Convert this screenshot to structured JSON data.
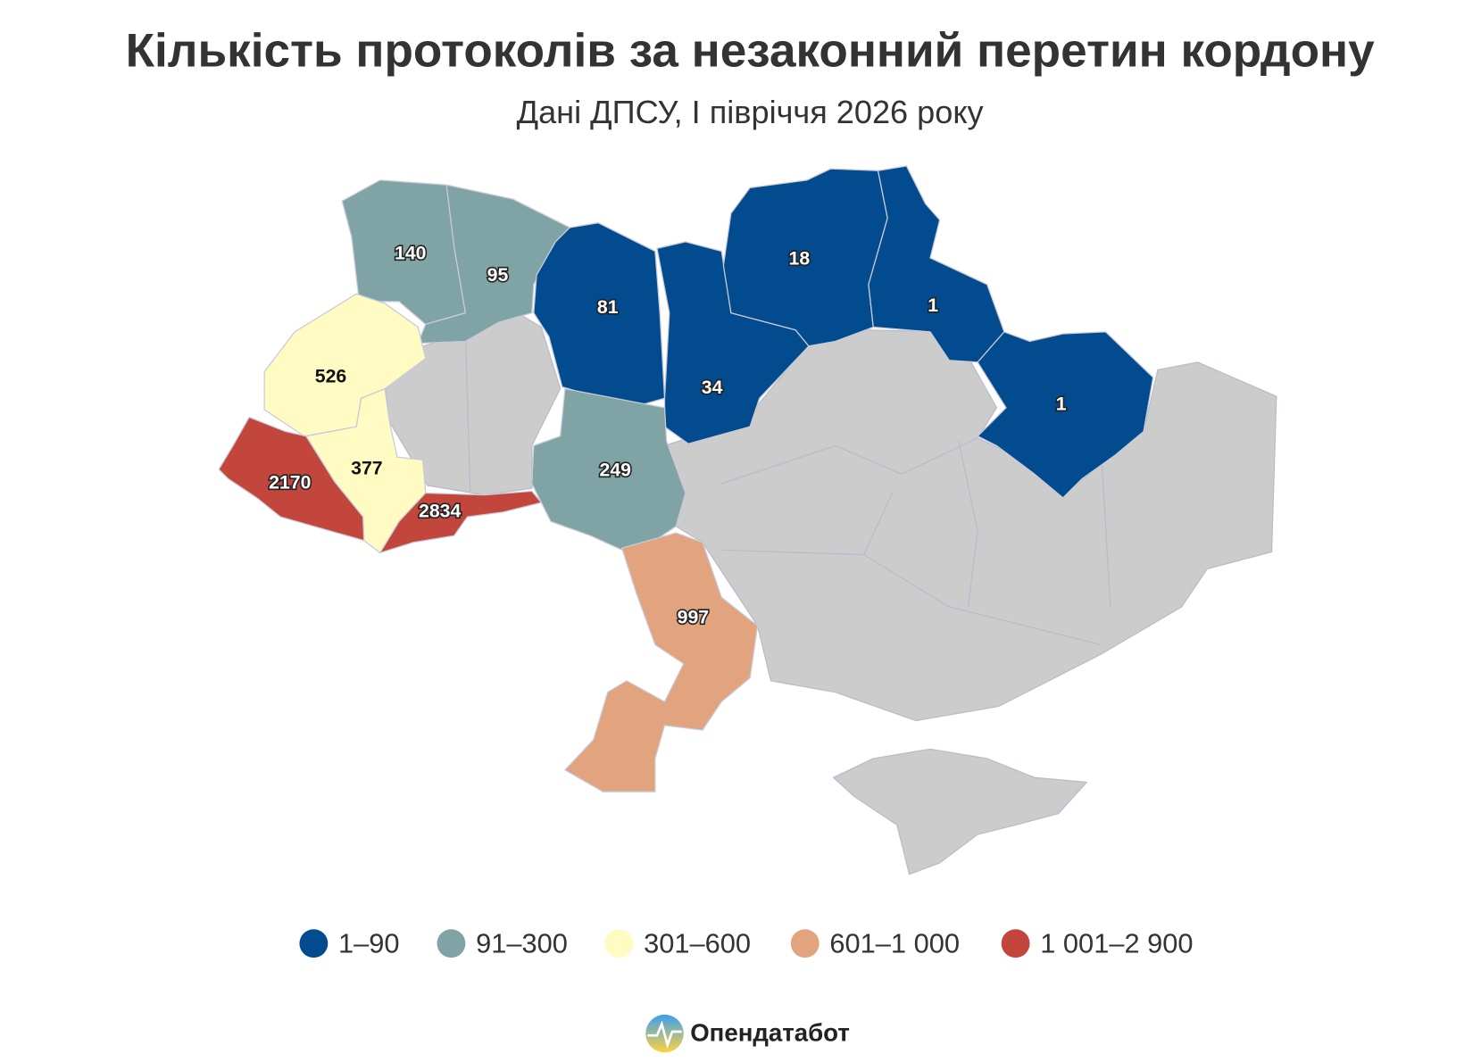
{
  "title": "Кількість протоколів за незаконний перетин кордону",
  "subtitle": "Дані ДПСУ, І півріччя 2026 року",
  "regions": [
    {
      "value": 140,
      "color": "#80a4a6"
    },
    {
      "value": 95,
      "color": "#80a4a6"
    },
    {
      "value": 81,
      "color": "#024b8e"
    },
    {
      "value": 34,
      "color": "#024b8e"
    },
    {
      "value": 18,
      "color": "#024b8e"
    },
    {
      "value": 1,
      "color": "#024b8e"
    },
    {
      "value": 1,
      "color": "#024b8e"
    },
    {
      "value": 526,
      "color": "#fffbc3"
    },
    {
      "value": 377,
      "color": "#fffbc3"
    },
    {
      "value": 2170,
      "color": "#c3463c"
    },
    {
      "value": 2834,
      "color": "#c3463c"
    },
    {
      "value": 249,
      "color": "#80a4a6"
    },
    {
      "value": 997,
      "color": "#e1a47e"
    }
  ],
  "legend": [
    {
      "label": "1–90",
      "color": "#024b8e"
    },
    {
      "label": "91–300",
      "color": "#80a4a6"
    },
    {
      "label": "301–600",
      "color": "#fffbc3"
    },
    {
      "label": "601–1 000",
      "color": "#e1a47e"
    },
    {
      "label": "1 001–2 900",
      "color": "#c3463c"
    }
  ],
  "source": "Опендатабот"
}
